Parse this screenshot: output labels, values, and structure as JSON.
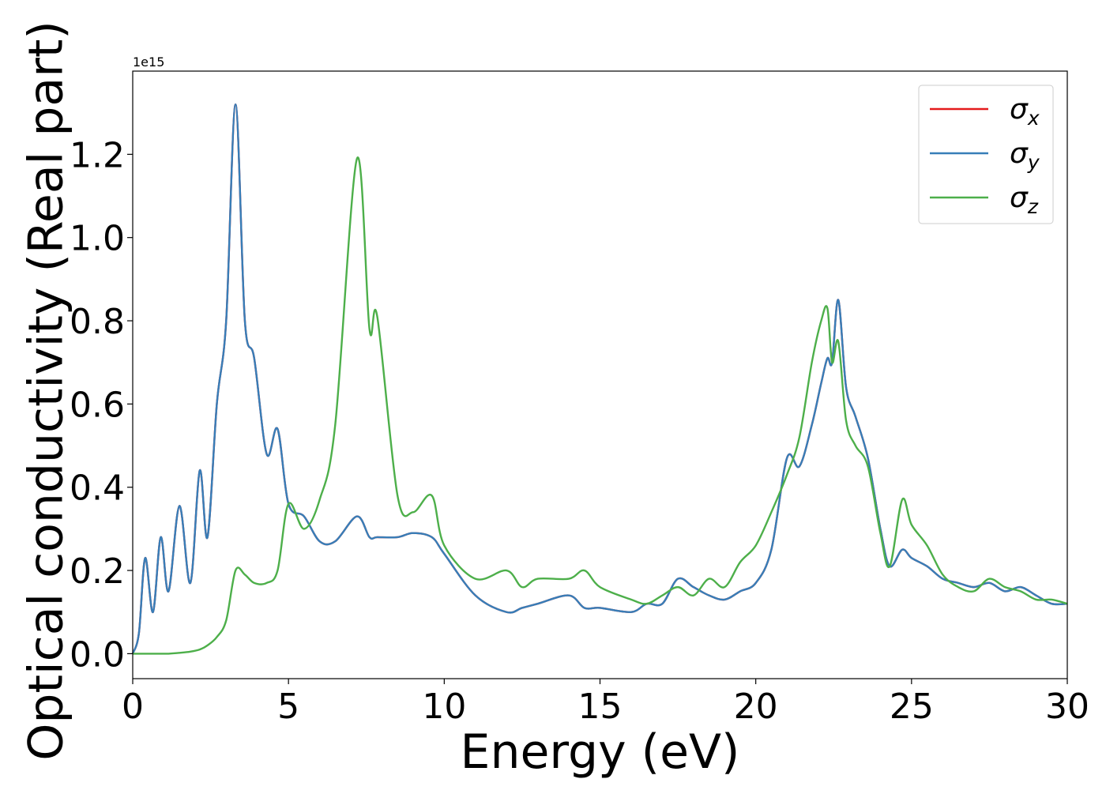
{
  "chart_data": {
    "type": "line",
    "xlabel": "Energy (eV)",
    "ylabel": "Optical conductivity (Real part)",
    "y_offset_label": "1e15",
    "xlim": [
      0,
      30
    ],
    "ylim": [
      -0.06,
      1.4
    ],
    "xticks": [
      0,
      5,
      10,
      15,
      20,
      25,
      30
    ],
    "xtick_labels": [
      "0",
      "5",
      "10",
      "15",
      "20",
      "25",
      "30"
    ],
    "yticks": [
      0.0,
      0.2,
      0.4,
      0.6,
      0.8,
      1.0,
      1.2
    ],
    "ytick_labels": [
      "0.0",
      "0.2",
      "0.4",
      "0.6",
      "0.8",
      "1.0",
      "1.2"
    ],
    "grid": false,
    "legend_position": "top-right",
    "x": [
      0,
      0.2,
      0.4,
      0.65,
      0.9,
      1.15,
      1.5,
      1.85,
      2.15,
      2.4,
      2.7,
      3.0,
      3.3,
      3.6,
      3.9,
      4.3,
      4.65,
      5.0,
      5.5,
      6.0,
      6.5,
      7.2,
      7.6,
      7.85,
      8.5,
      9.0,
      9.6,
      10.0,
      11.0,
      12.0,
      12.5,
      13.0,
      14.0,
      14.5,
      15.0,
      16.0,
      16.5,
      17.0,
      17.5,
      18.0,
      18.5,
      19.0,
      19.5,
      20.0,
      20.5,
      21.0,
      21.4,
      21.8,
      22.1,
      22.3,
      22.45,
      22.65,
      22.9,
      23.2,
      23.6,
      24.0,
      24.3,
      24.7,
      25.0,
      25.5,
      26.0,
      26.5,
      27.0,
      27.5,
      28.0,
      28.5,
      29.0,
      29.5,
      30.0
    ],
    "series": [
      {
        "name": "σx",
        "color": "#e41a1c",
        "values": [
          0.0,
          0.05,
          0.23,
          0.1,
          0.28,
          0.15,
          0.355,
          0.17,
          0.44,
          0.28,
          0.6,
          0.8,
          1.32,
          0.8,
          0.71,
          0.48,
          0.54,
          0.36,
          0.33,
          0.27,
          0.27,
          0.33,
          0.28,
          0.28,
          0.28,
          0.29,
          0.28,
          0.24,
          0.14,
          0.1,
          0.11,
          0.12,
          0.14,
          0.11,
          0.11,
          0.1,
          0.12,
          0.12,
          0.18,
          0.16,
          0.14,
          0.13,
          0.15,
          0.17,
          0.25,
          0.47,
          0.45,
          0.55,
          0.65,
          0.71,
          0.7,
          0.85,
          0.64,
          0.57,
          0.47,
          0.3,
          0.21,
          0.25,
          0.23,
          0.21,
          0.18,
          0.17,
          0.16,
          0.17,
          0.15,
          0.16,
          0.14,
          0.12,
          0.12
        ]
      },
      {
        "name": "σy",
        "color": "#377eb8",
        "values": [
          0.0,
          0.05,
          0.23,
          0.1,
          0.28,
          0.15,
          0.355,
          0.17,
          0.44,
          0.28,
          0.6,
          0.8,
          1.32,
          0.8,
          0.71,
          0.48,
          0.54,
          0.36,
          0.33,
          0.27,
          0.27,
          0.33,
          0.28,
          0.28,
          0.28,
          0.29,
          0.28,
          0.24,
          0.14,
          0.1,
          0.11,
          0.12,
          0.14,
          0.11,
          0.11,
          0.1,
          0.12,
          0.12,
          0.18,
          0.16,
          0.14,
          0.13,
          0.15,
          0.17,
          0.25,
          0.47,
          0.45,
          0.55,
          0.65,
          0.71,
          0.7,
          0.85,
          0.64,
          0.57,
          0.47,
          0.3,
          0.21,
          0.25,
          0.23,
          0.21,
          0.18,
          0.17,
          0.16,
          0.17,
          0.15,
          0.16,
          0.14,
          0.12,
          0.12
        ]
      },
      {
        "name": "σz",
        "color": "#4daf4a",
        "values": [
          0.0,
          0.0,
          0.0,
          0.0,
          0.0,
          0.0,
          0.002,
          0.005,
          0.01,
          0.02,
          0.04,
          0.08,
          0.2,
          0.19,
          0.17,
          0.17,
          0.2,
          0.36,
          0.3,
          0.37,
          0.55,
          1.19,
          0.78,
          0.81,
          0.38,
          0.34,
          0.38,
          0.26,
          0.18,
          0.2,
          0.16,
          0.18,
          0.18,
          0.2,
          0.16,
          0.13,
          0.12,
          0.14,
          0.16,
          0.14,
          0.18,
          0.16,
          0.22,
          0.26,
          0.34,
          0.43,
          0.52,
          0.7,
          0.8,
          0.83,
          0.7,
          0.75,
          0.56,
          0.5,
          0.45,
          0.29,
          0.21,
          0.37,
          0.31,
          0.26,
          0.19,
          0.16,
          0.15,
          0.18,
          0.16,
          0.15,
          0.13,
          0.13,
          0.12
        ]
      }
    ],
    "legend": {
      "entries": [
        {
          "symbol": "σ",
          "subscript": "x",
          "color": "#e41a1c"
        },
        {
          "symbol": "σ",
          "subscript": "y",
          "color": "#377eb8"
        },
        {
          "symbol": "σ",
          "subscript": "z",
          "color": "#4daf4a"
        }
      ]
    }
  }
}
